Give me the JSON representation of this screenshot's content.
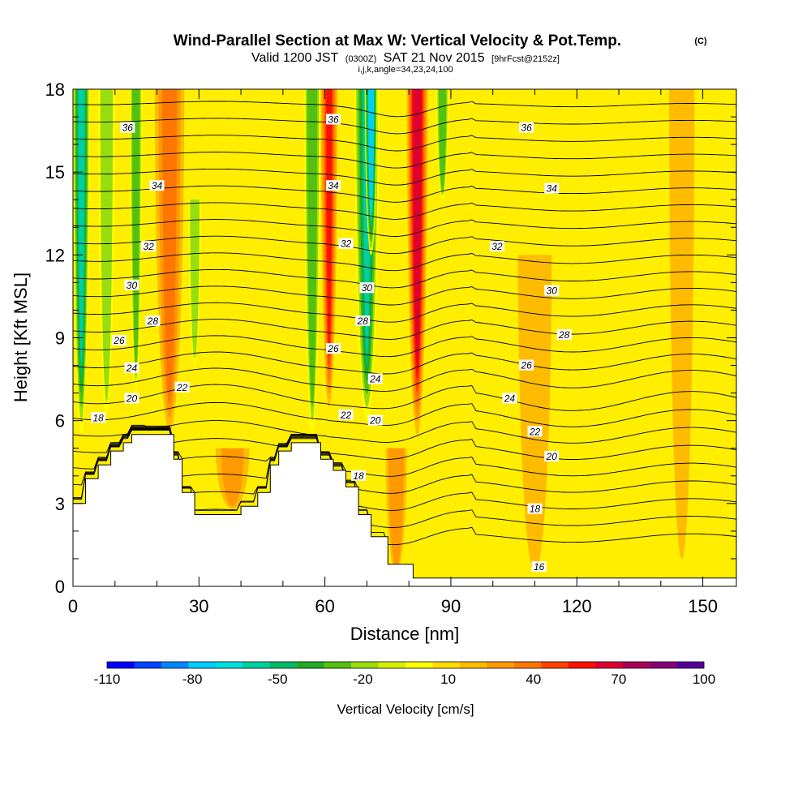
{
  "chart_data": {
    "type": "heatmap",
    "title": "Wind-Parallel Section at Max W: Vertical Velocity & Pot.Temp.",
    "title_suffix": "(C)",
    "subtitle_parts": [
      "Valid 1200 JST",
      "(0300Z)",
      "SAT 21 Nov 2015",
      "[9hrFcst@2152z]"
    ],
    "subtitle2": "i,j,k,angle=34,23,24,100",
    "xlabel": "Distance [nm]",
    "ylabel": "Height [Kft MSL]",
    "xlim": [
      0,
      158
    ],
    "ylim": [
      0,
      18
    ],
    "xticks": [
      0,
      30,
      60,
      90,
      120,
      150
    ],
    "yticks": [
      0,
      3,
      6,
      9,
      12,
      15,
      18
    ],
    "colorbar": {
      "label": "Vertical Velocity [cm/s]",
      "tick_labels": [
        "-110",
        "-80",
        "-50",
        "-20",
        "10",
        "40",
        "70",
        "100"
      ],
      "tick_values": [
        -110,
        -80,
        -50,
        -20,
        10,
        40,
        70,
        100
      ],
      "range": [
        -110,
        100
      ],
      "colors": [
        "#0000ff",
        "#0044ff",
        "#0088ff",
        "#00ccff",
        "#00e0e0",
        "#00d0a0",
        "#00bb66",
        "#22aa22",
        "#55c011",
        "#99dd11",
        "#d8f000",
        "#ffff00",
        "#ffdd00",
        "#ffbb00",
        "#ff9900",
        "#ff7700",
        "#ff4400",
        "#ff1100",
        "#dd0033",
        "#aa0055",
        "#880077",
        "#550099"
      ]
    },
    "theta_contours": [
      16,
      18,
      20,
      22,
      24,
      26,
      28,
      30,
      32,
      34,
      36
    ],
    "theta_label_texts": [
      "16",
      "18",
      "20",
      "22",
      "24",
      "26",
      "28",
      "30",
      "32",
      "34",
      "36"
    ],
    "terrain_profile": [
      [
        0,
        3.0
      ],
      [
        3,
        3.0
      ],
      [
        3,
        3.9
      ],
      [
        6,
        3.9
      ],
      [
        6,
        4.4
      ],
      [
        9,
        4.4
      ],
      [
        9,
        4.9
      ],
      [
        12,
        4.9
      ],
      [
        12,
        5.2
      ],
      [
        14,
        5.2
      ],
      [
        14,
        5.5
      ],
      [
        24,
        5.5
      ],
      [
        24,
        4.6
      ],
      [
        26,
        4.6
      ],
      [
        26,
        3.4
      ],
      [
        29,
        3.4
      ],
      [
        29,
        2.6
      ],
      [
        40,
        2.6
      ],
      [
        40,
        2.9
      ],
      [
        44,
        2.9
      ],
      [
        44,
        3.4
      ],
      [
        47,
        3.4
      ],
      [
        47,
        4.4
      ],
      [
        49,
        4.4
      ],
      [
        49,
        4.9
      ],
      [
        52,
        4.9
      ],
      [
        52,
        5.2
      ],
      [
        59,
        5.2
      ],
      [
        59,
        4.6
      ],
      [
        62,
        4.6
      ],
      [
        62,
        4.2
      ],
      [
        65,
        4.2
      ],
      [
        65,
        3.6
      ],
      [
        68,
        3.6
      ],
      [
        68,
        2.6
      ],
      [
        71,
        2.6
      ],
      [
        71,
        1.8
      ],
      [
        75,
        1.8
      ],
      [
        75,
        0.8
      ],
      [
        81,
        0.8
      ],
      [
        81,
        0.3
      ],
      [
        158,
        0.3
      ]
    ],
    "vertical_velocity_features": [
      {
        "x": 2,
        "width": 4,
        "base": 5.5,
        "top": 18,
        "value": -60
      },
      {
        "x": 8,
        "width": 4,
        "base": 6.2,
        "top": 18,
        "value": -20
      },
      {
        "x": 15,
        "width": 3,
        "base": 7,
        "top": 18,
        "value": -30
      },
      {
        "x": 23,
        "width": 4,
        "base": 5.8,
        "top": 18,
        "value": 65
      },
      {
        "x": 23,
        "width": 7,
        "base": 5.6,
        "top": 18,
        "value": 35
      },
      {
        "x": 29,
        "width": 3,
        "base": 8,
        "top": 14,
        "value": -20
      },
      {
        "x": 57,
        "width": 4,
        "base": 5.5,
        "top": 18,
        "value": -30
      },
      {
        "x": 61,
        "width": 4,
        "base": 6.5,
        "top": 18,
        "value": 55
      },
      {
        "x": 70,
        "width": 6,
        "base": 6,
        "top": 18,
        "value": -55
      },
      {
        "x": 71,
        "width": 3,
        "base": 12,
        "top": 18,
        "value": -80
      },
      {
        "x": 82,
        "width": 5,
        "base": 5.5,
        "top": 18,
        "value": 70
      },
      {
        "x": 88,
        "width": 3,
        "base": 14,
        "top": 18,
        "value": -30
      },
      {
        "x": 77,
        "width": 5,
        "base": 0.5,
        "top": 5,
        "value": 30
      },
      {
        "x": 38,
        "width": 8,
        "base": 2.8,
        "top": 5.0,
        "value": 25
      },
      {
        "x": 110,
        "width": 8,
        "base": 0.5,
        "top": 12,
        "value": 18
      },
      {
        "x": 145,
        "width": 6,
        "base": 1,
        "top": 18,
        "value": 16
      }
    ],
    "grid": false,
    "legend": "colorbar-bottom"
  }
}
